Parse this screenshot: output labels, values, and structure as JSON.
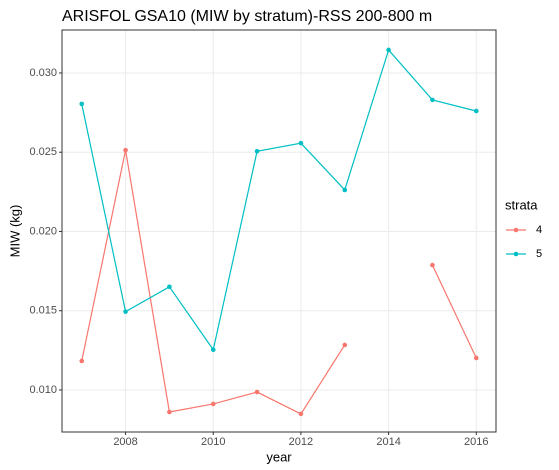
{
  "chart_data": {
    "type": "line",
    "title": "ARISFOL GSA10 (MIW by stratum)-RSS 200-800 m",
    "x_label": "year",
    "y_label": "MIW (kg)",
    "x": [
      2007,
      2008,
      2009,
      2010,
      2011,
      2012,
      2013,
      2014,
      2015,
      2016
    ],
    "series": [
      {
        "name": "4",
        "color": "#f8766d",
        "values": [
          0.01183,
          0.02513,
          0.00861,
          0.00912,
          0.00987,
          0.00849,
          0.01284,
          null,
          0.01788,
          0.01202
        ]
      },
      {
        "name": "5",
        "color": "#00bfc4",
        "values": [
          0.02805,
          0.01494,
          0.01651,
          0.01254,
          0.02506,
          0.02557,
          0.02262,
          0.03145,
          0.0283,
          0.0276
        ]
      }
    ],
    "legend_title": "strata",
    "xlim": [
      2006.55,
      2016.45
    ],
    "xticks": [
      2008,
      2010,
      2012,
      2014,
      2016
    ],
    "ylim": [
      0.00735,
      0.03271
    ],
    "yticks": [
      {
        "value": 0.01,
        "label": "0.010"
      },
      {
        "value": 0.015,
        "label": "0.015"
      },
      {
        "value": 0.02,
        "label": "0.020"
      },
      {
        "value": 0.025,
        "label": "0.025"
      },
      {
        "value": 0.03,
        "label": "0.030"
      }
    ],
    "grid": true
  }
}
